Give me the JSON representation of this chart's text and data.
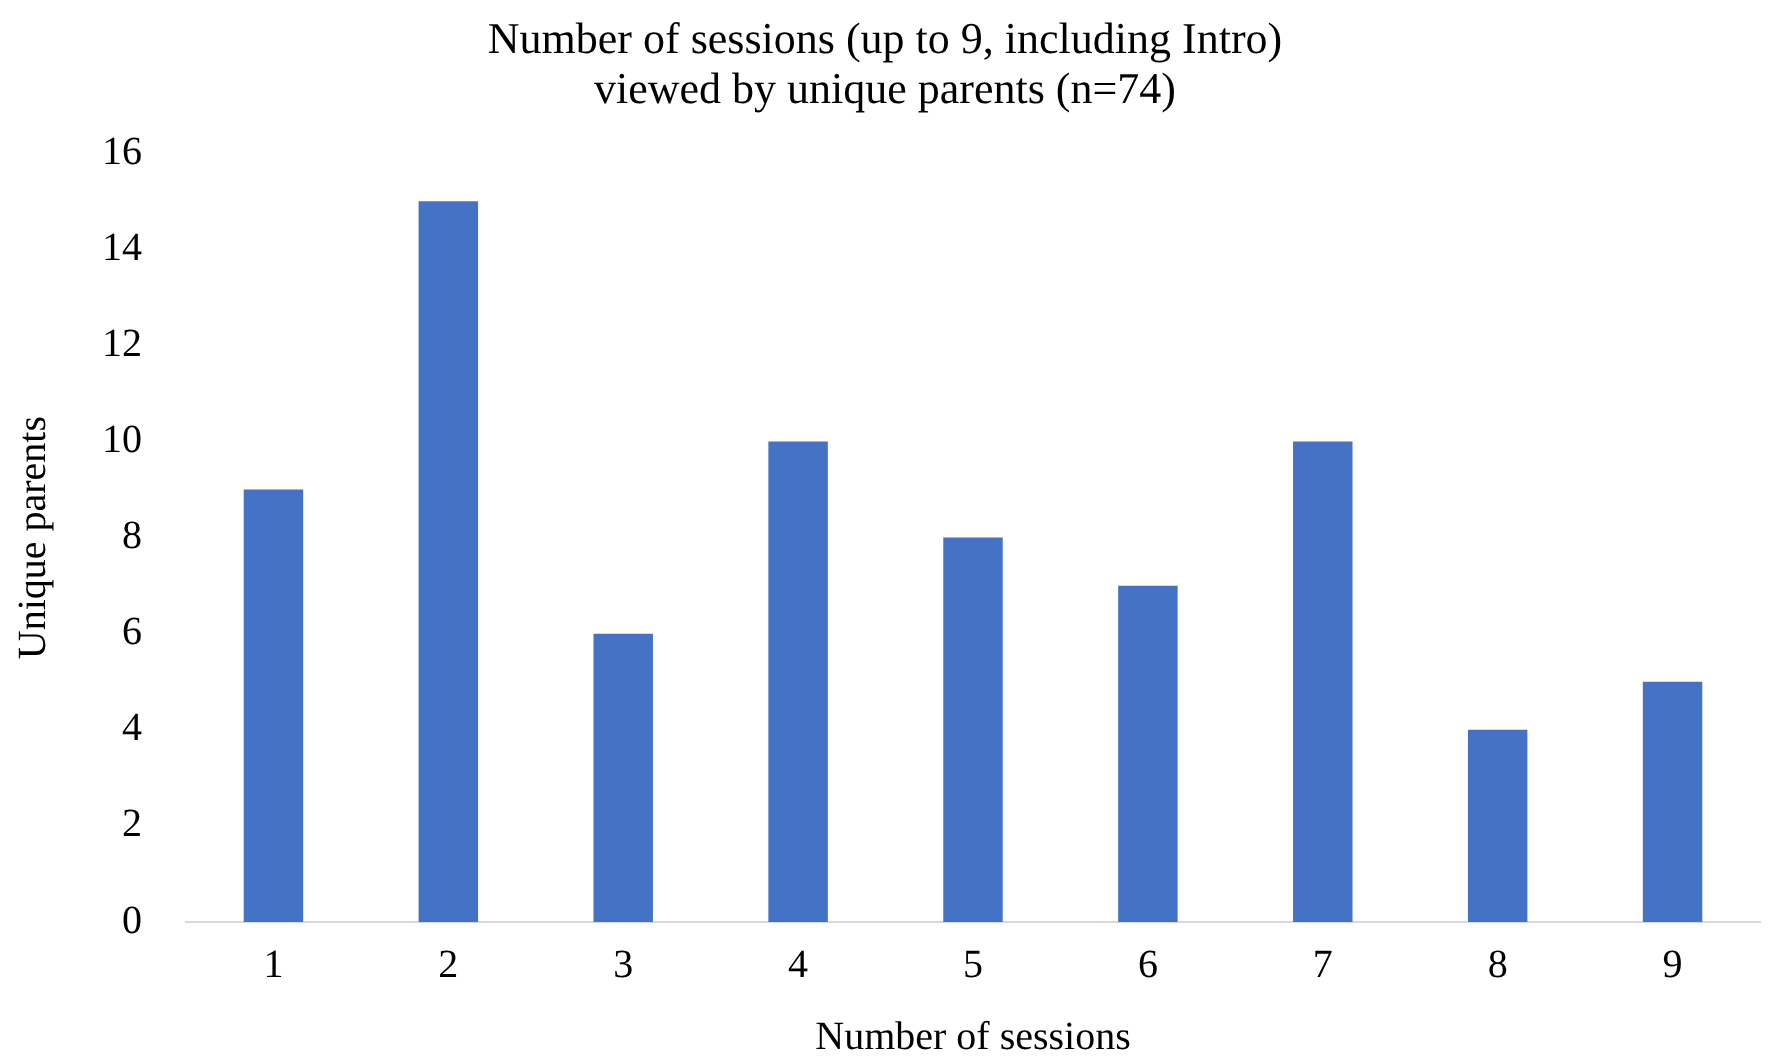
{
  "chart_data": {
    "type": "bar",
    "title": "Number of sessions (up to 9, including Intro)\nviewed by unique parents (n=74)",
    "xlabel": "Number of sessions",
    "ylabel": "Unique parents",
    "categories": [
      "1",
      "2",
      "3",
      "4",
      "5",
      "6",
      "7",
      "8",
      "9"
    ],
    "values": [
      9,
      15,
      6,
      10,
      8,
      7,
      10,
      4,
      5
    ],
    "color": "#4472c4",
    "ylim": [
      0,
      16
    ],
    "yticks": [
      0,
      2,
      4,
      6,
      8,
      10,
      12,
      14,
      16
    ],
    "grid": false,
    "legend": false
  }
}
